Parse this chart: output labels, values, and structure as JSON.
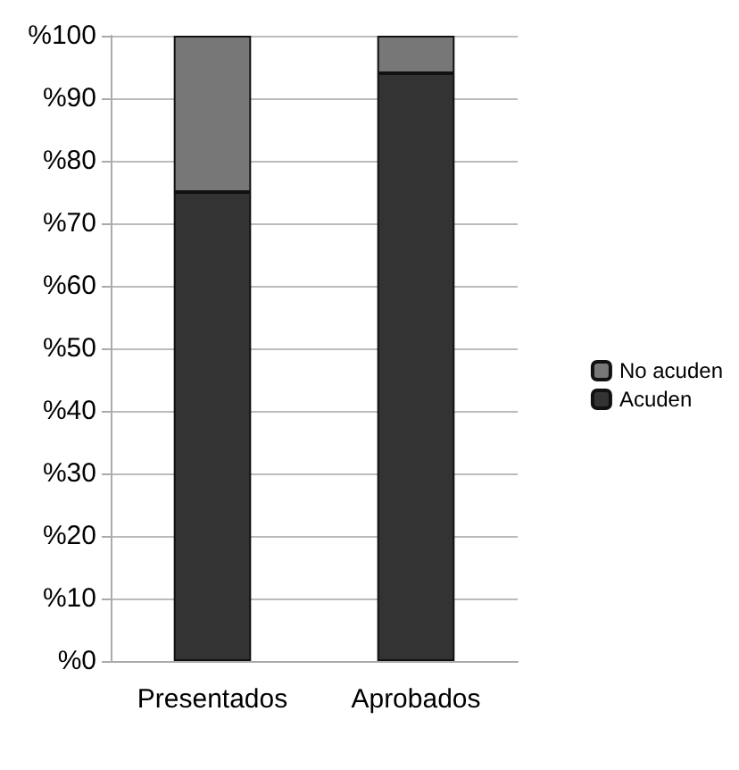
{
  "chart_data": {
    "type": "bar",
    "stacked": true,
    "categories": [
      "Presentados",
      "Aprobados"
    ],
    "series": [
      {
        "name": "Acuden",
        "color": "#333333",
        "values": [
          75,
          94
        ]
      },
      {
        "name": "No acuden",
        "color": "#777777",
        "values": [
          25,
          6
        ]
      }
    ],
    "ylim": [
      0,
      100
    ],
    "yticks": [
      {
        "value": 0,
        "label": "%0"
      },
      {
        "value": 10,
        "label": "%10"
      },
      {
        "value": 20,
        "label": "%20"
      },
      {
        "value": 30,
        "label": "%30"
      },
      {
        "value": 40,
        "label": "%40"
      },
      {
        "value": 50,
        "label": "%50"
      },
      {
        "value": 60,
        "label": "%60"
      },
      {
        "value": 70,
        "label": "%70"
      },
      {
        "value": 80,
        "label": "%80"
      },
      {
        "value": 90,
        "label": "%90"
      },
      {
        "value": 100,
        "label": "%100"
      }
    ],
    "grid": "y",
    "legend": "right"
  }
}
